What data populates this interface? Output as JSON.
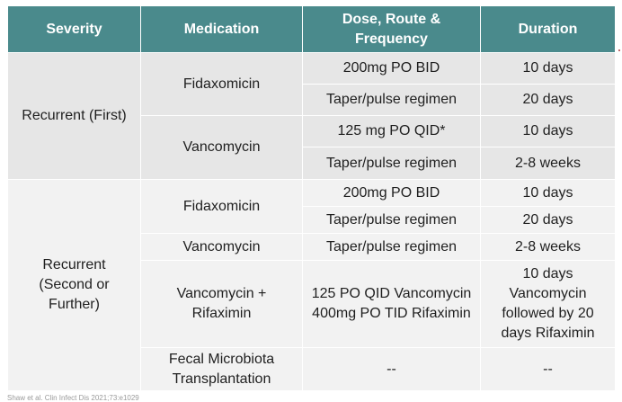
{
  "table": {
    "headers": [
      "Severity",
      "Medication",
      "Dose, Route & Frequency",
      "Duration"
    ],
    "groups": [
      {
        "severity": "Recurrent (First)",
        "meds": [
          {
            "name": "Fidaxomicin",
            "rows": [
              {
                "dose": "200mg PO BID",
                "duration": "10 days"
              },
              {
                "dose": "Taper/pulse regimen",
                "duration": "20 days"
              }
            ]
          },
          {
            "name": "Vancomycin",
            "rows": [
              {
                "dose": "125 mg PO QID*",
                "duration": "10 days"
              },
              {
                "dose": "Taper/pulse regimen",
                "duration": "2-8 weeks"
              }
            ]
          }
        ]
      },
      {
        "severity": "Recurrent (Second or Further)",
        "meds": [
          {
            "name": "Fidaxomicin",
            "rows": [
              {
                "dose": "200mg PO BID",
                "duration": "10 days"
              },
              {
                "dose": "Taper/pulse regimen",
                "duration": "20 days"
              }
            ]
          },
          {
            "name": "Vancomycin",
            "rows": [
              {
                "dose": "Taper/pulse regimen",
                "duration": "2-8 weeks"
              }
            ]
          },
          {
            "name": "Vancomycin + Rifaximin",
            "rows": [
              {
                "dose": "125 PO QID Vancomycin 400mg PO TID Rifaximin",
                "duration": "10 days Vancomycin followed by 20 days Rifaximin"
              }
            ]
          },
          {
            "name": "Fecal Microbiota Transplantation",
            "rows": [
              {
                "dose": "--",
                "duration": "--"
              }
            ]
          }
        ]
      }
    ]
  },
  "footnote": "Shaw et al. Clin Infect Dis 2021;73:e1029"
}
